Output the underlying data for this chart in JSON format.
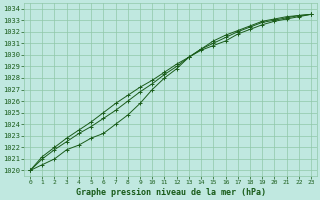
{
  "x": [
    0,
    1,
    2,
    3,
    4,
    5,
    6,
    7,
    8,
    9,
    10,
    11,
    12,
    13,
    14,
    15,
    16,
    17,
    18,
    19,
    20,
    21,
    22,
    23
  ],
  "line1": [
    1020.0,
    1020.5,
    1021.0,
    1021.8,
    1022.2,
    1022.8,
    1023.2,
    1024.0,
    1024.8,
    1025.8,
    1027.0,
    1028.0,
    1028.8,
    1029.8,
    1030.4,
    1030.8,
    1031.2,
    1031.8,
    1032.2,
    1032.6,
    1032.9,
    1033.1,
    1033.3,
    1033.5
  ],
  "line2": [
    1020.0,
    1021.0,
    1021.8,
    1022.5,
    1023.2,
    1023.8,
    1024.5,
    1025.2,
    1026.0,
    1026.8,
    1027.5,
    1028.3,
    1029.0,
    1029.8,
    1030.5,
    1031.0,
    1031.5,
    1032.0,
    1032.4,
    1032.8,
    1033.0,
    1033.2,
    1033.4,
    1033.5
  ],
  "line3": [
    1020.0,
    1021.2,
    1022.0,
    1022.8,
    1023.5,
    1024.2,
    1025.0,
    1025.8,
    1026.5,
    1027.2,
    1027.8,
    1028.5,
    1029.2,
    1029.8,
    1030.5,
    1031.2,
    1031.7,
    1032.1,
    1032.5,
    1032.9,
    1033.1,
    1033.3,
    1033.4,
    1033.5
  ],
  "bg_color": "#c0e8e0",
  "grid_color": "#90c8a8",
  "line_color": "#1a5c1a",
  "marker": "+",
  "xlabel": "Graphe pression niveau de la mer (hPa)",
  "ylim": [
    1019.5,
    1034.5
  ],
  "xlim": [
    -0.5,
    23.5
  ],
  "yticks": [
    1020,
    1021,
    1022,
    1023,
    1024,
    1025,
    1026,
    1027,
    1028,
    1029,
    1030,
    1031,
    1032,
    1033,
    1034
  ],
  "xticks": [
    0,
    1,
    2,
    3,
    4,
    5,
    6,
    7,
    8,
    9,
    10,
    11,
    12,
    13,
    14,
    15,
    16,
    17,
    18,
    19,
    20,
    21,
    22,
    23
  ],
  "figwidth": 3.2,
  "figheight": 2.0,
  "dpi": 100
}
